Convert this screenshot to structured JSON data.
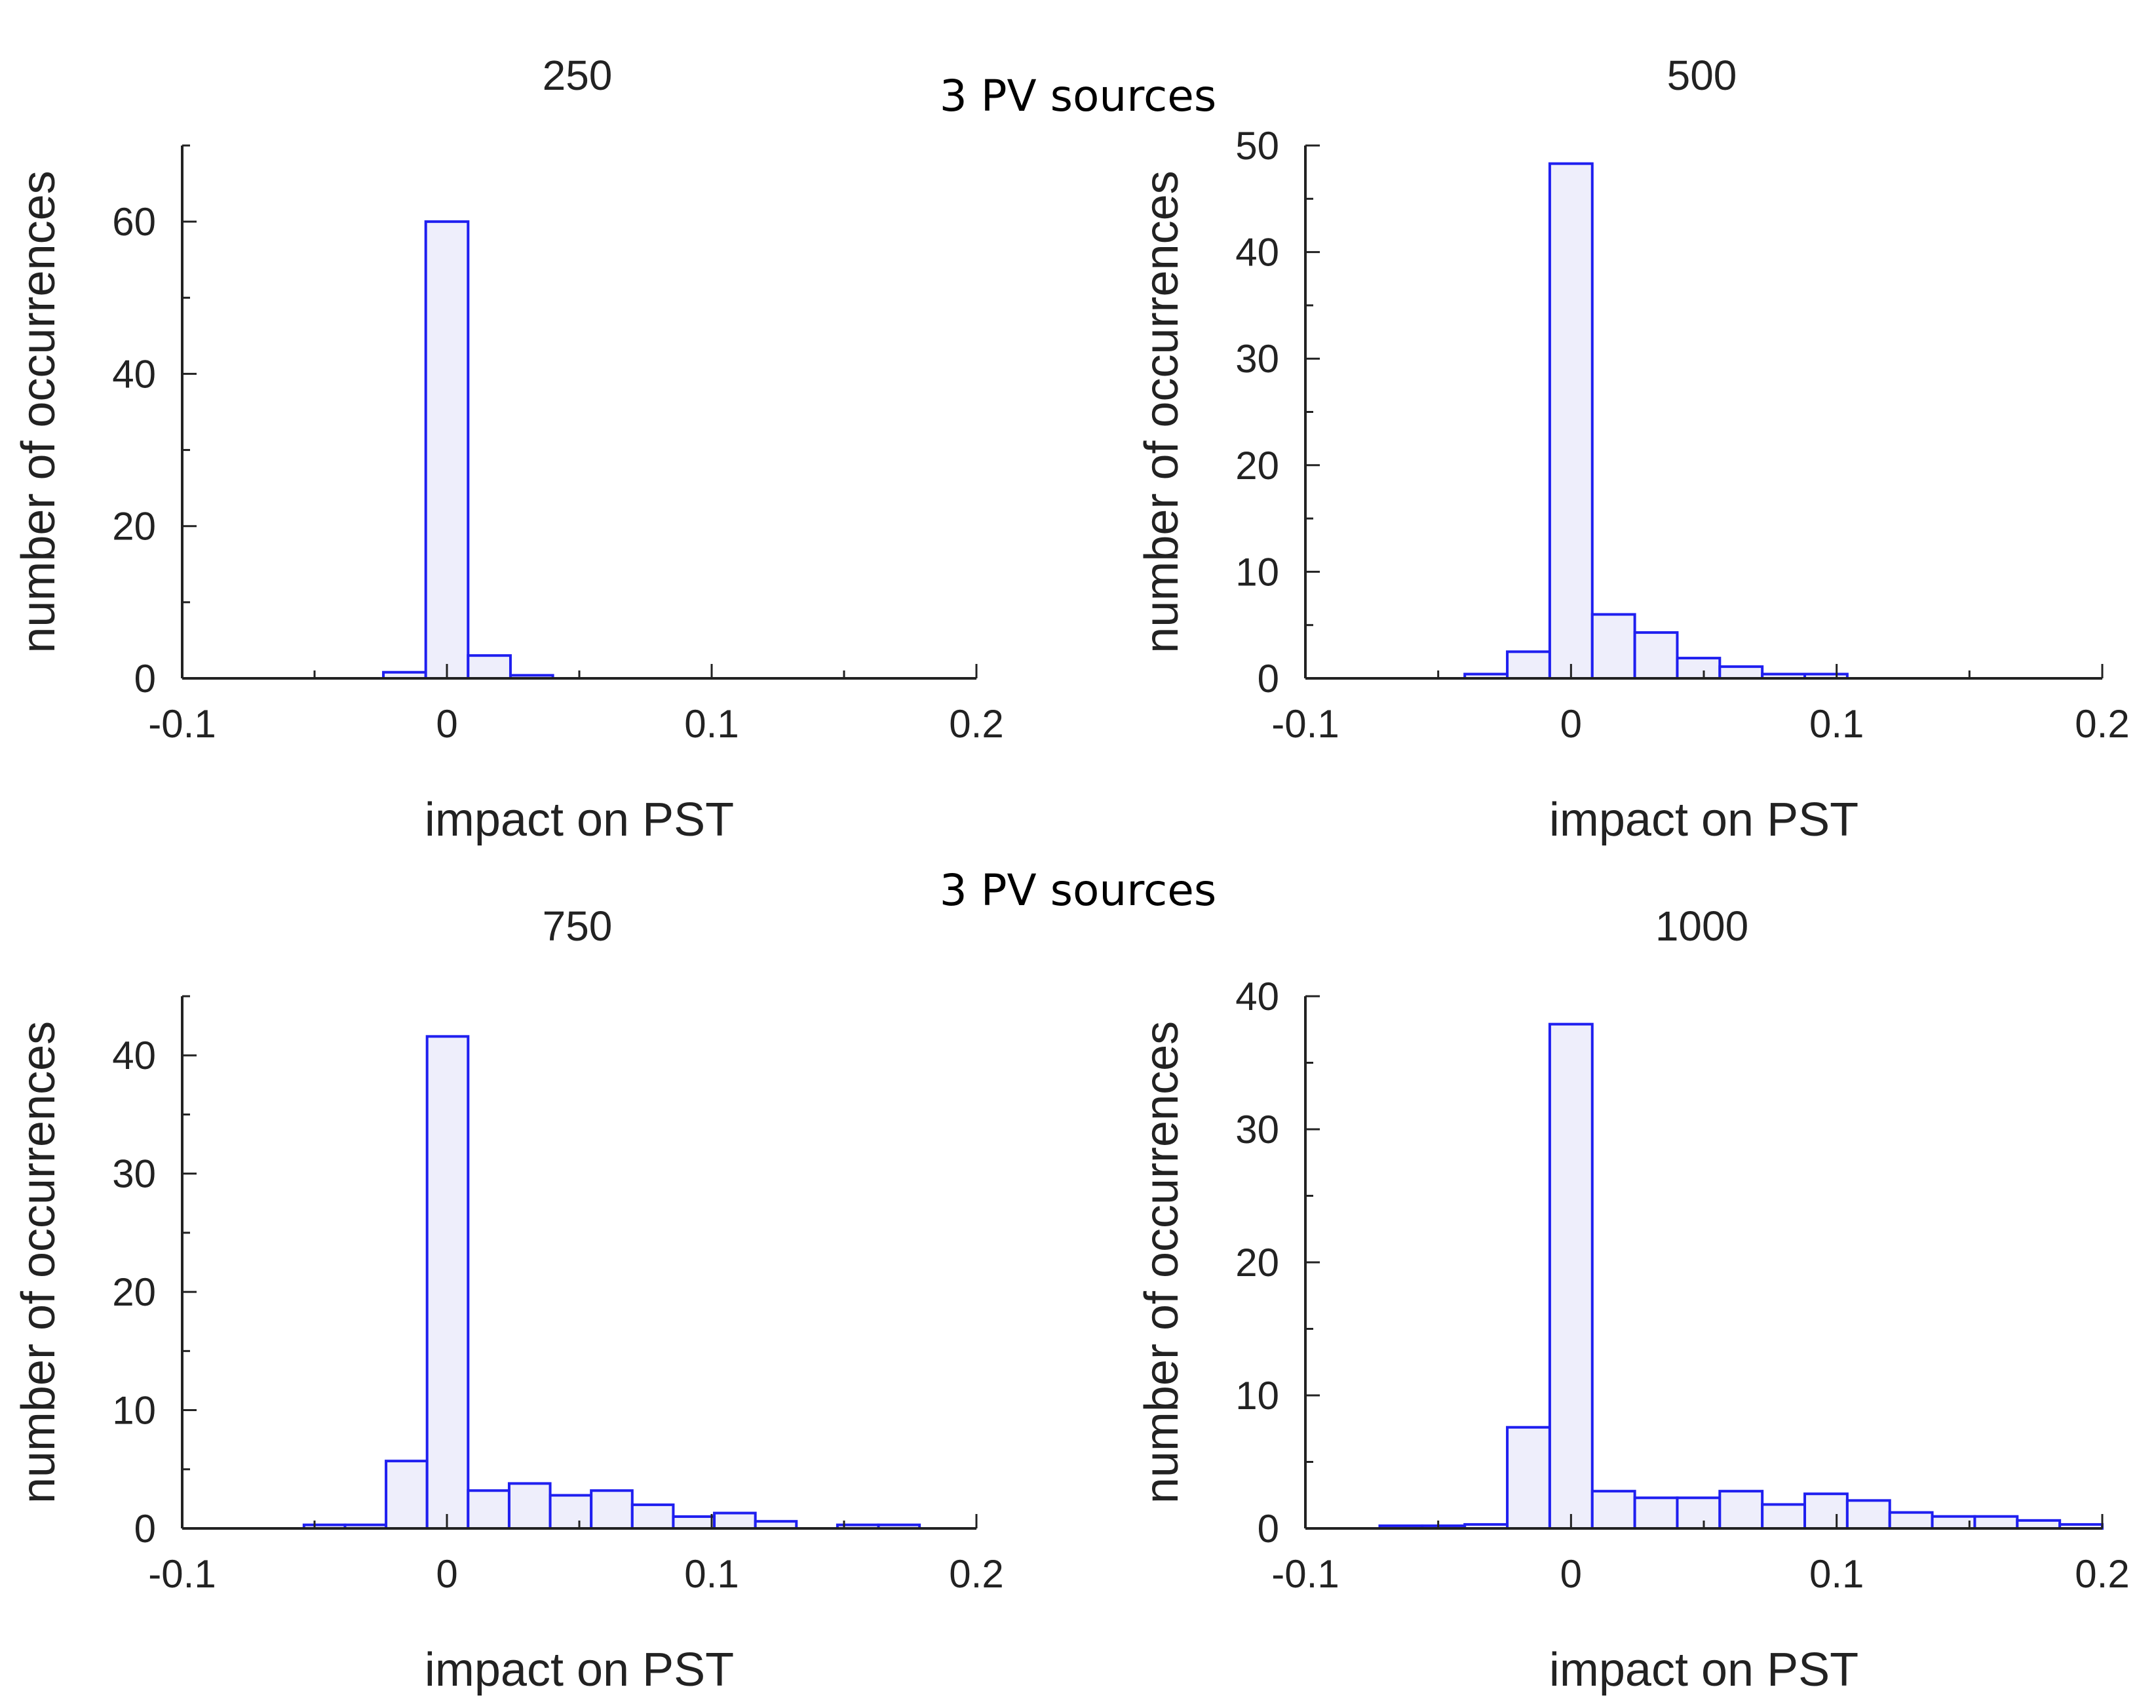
{
  "figure": {
    "top_supertitle": "3 PV sources",
    "middle_supertitle": "3 PV sources"
  },
  "colors": {
    "bar_stroke": "#1f1ff0",
    "bar_fill": "#eeeefb",
    "axis": "#222222"
  },
  "chart_data": [
    {
      "type": "bar",
      "title": "250",
      "xlabel": "impact on PST",
      "ylabel": "number of occurrences",
      "xlim": [
        -0.1,
        0.2
      ],
      "ylim": [
        0,
        70
      ],
      "xticks": [
        -0.1,
        0,
        0.1,
        0.2
      ],
      "xtick_labels": [
        "-0.1",
        "0",
        "0.1",
        "0.2"
      ],
      "yticks": [
        0,
        20,
        40,
        60
      ],
      "ytick_labels": [
        "0",
        "20",
        "40",
        "60"
      ],
      "bin_width": 0.016,
      "bins": [
        {
          "x": -0.024,
          "value": 0.8
        },
        {
          "x": -0.008,
          "value": 60
        },
        {
          "x": 0.008,
          "value": 3
        },
        {
          "x": 0.024,
          "value": 0.4
        }
      ]
    },
    {
      "type": "bar",
      "title": "500",
      "xlabel": "impact on PST",
      "ylabel": "number of occurrences",
      "xlim": [
        -0.1,
        0.2
      ],
      "ylim": [
        0,
        50
      ],
      "xticks": [
        -0.1,
        0,
        0.1,
        0.2
      ],
      "xtick_labels": [
        "-0.1",
        "0",
        "0.1",
        "0.2"
      ],
      "yticks": [
        0,
        10,
        20,
        30,
        40,
        50
      ],
      "ytick_labels": [
        "0",
        "10",
        "20",
        "30",
        "40",
        "50"
      ],
      "bin_width": 0.016,
      "bins": [
        {
          "x": -0.04,
          "value": 0.4
        },
        {
          "x": -0.024,
          "value": 2.5
        },
        {
          "x": -0.008,
          "value": 48.3
        },
        {
          "x": 0.008,
          "value": 6
        },
        {
          "x": 0.024,
          "value": 4.3
        },
        {
          "x": 0.04,
          "value": 1.9
        },
        {
          "x": 0.056,
          "value": 1.1
        },
        {
          "x": 0.072,
          "value": 0.4
        },
        {
          "x": 0.088,
          "value": 0.4
        }
      ]
    },
    {
      "type": "bar",
      "title": "750",
      "xlabel": "impact on PST",
      "ylabel": "number of occurrences",
      "xlim": [
        -0.1,
        0.2
      ],
      "ylim": [
        0,
        45
      ],
      "xticks": [
        -0.1,
        0,
        0.1,
        0.2
      ],
      "xtick_labels": [
        "-0.1",
        "0",
        "0.1",
        "0.2"
      ],
      "yticks": [
        0,
        10,
        20,
        30,
        40
      ],
      "ytick_labels": [
        "0",
        "10",
        "20",
        "30",
        "40"
      ],
      "bin_width": 0.0155,
      "bins": [
        {
          "x": -0.054,
          "value": 0.3
        },
        {
          "x": -0.0385,
          "value": 0.3
        },
        {
          "x": -0.023,
          "value": 5.7
        },
        {
          "x": -0.0075,
          "value": 41.6
        },
        {
          "x": 0.008,
          "value": 3.2
        },
        {
          "x": 0.0235,
          "value": 3.8
        },
        {
          "x": 0.039,
          "value": 2.8
        },
        {
          "x": 0.0545,
          "value": 3.2
        },
        {
          "x": 0.07,
          "value": 2
        },
        {
          "x": 0.0855,
          "value": 1
        },
        {
          "x": 0.101,
          "value": 1.3
        },
        {
          "x": 0.1165,
          "value": 0.6
        },
        {
          "x": 0.132,
          "value": 0
        },
        {
          "x": 0.1475,
          "value": 0.3
        },
        {
          "x": 0.163,
          "value": 0.3
        }
      ]
    },
    {
      "type": "bar",
      "title": "1000",
      "xlabel": "impact on PST",
      "ylabel": "number of occurrences",
      "xlim": [
        -0.1,
        0.2
      ],
      "ylim": [
        0,
        40
      ],
      "xticks": [
        -0.1,
        0,
        0.1,
        0.2
      ],
      "xtick_labels": [
        "-0.1",
        "0",
        "0.1",
        "0.2"
      ],
      "yticks": [
        0,
        10,
        20,
        30,
        40
      ],
      "ytick_labels": [
        "0",
        "10",
        "20",
        "30",
        "40"
      ],
      "bin_width": 0.016,
      "bins": [
        {
          "x": -0.072,
          "value": 0.2
        },
        {
          "x": -0.056,
          "value": 0.2
        },
        {
          "x": -0.04,
          "value": 0.3
        },
        {
          "x": -0.024,
          "value": 7.6
        },
        {
          "x": -0.008,
          "value": 37.9
        },
        {
          "x": 0.008,
          "value": 2.8
        },
        {
          "x": 0.024,
          "value": 2.3
        },
        {
          "x": 0.04,
          "value": 2.3
        },
        {
          "x": 0.056,
          "value": 2.8
        },
        {
          "x": 0.072,
          "value": 1.8
        },
        {
          "x": 0.088,
          "value": 2.6
        },
        {
          "x": 0.104,
          "value": 2.1
        },
        {
          "x": 0.12,
          "value": 1.2
        },
        {
          "x": 0.136,
          "value": 0.9
        },
        {
          "x": 0.152,
          "value": 0.9
        },
        {
          "x": 0.168,
          "value": 0.6
        },
        {
          "x": 0.184,
          "value": 0.3
        }
      ]
    }
  ]
}
